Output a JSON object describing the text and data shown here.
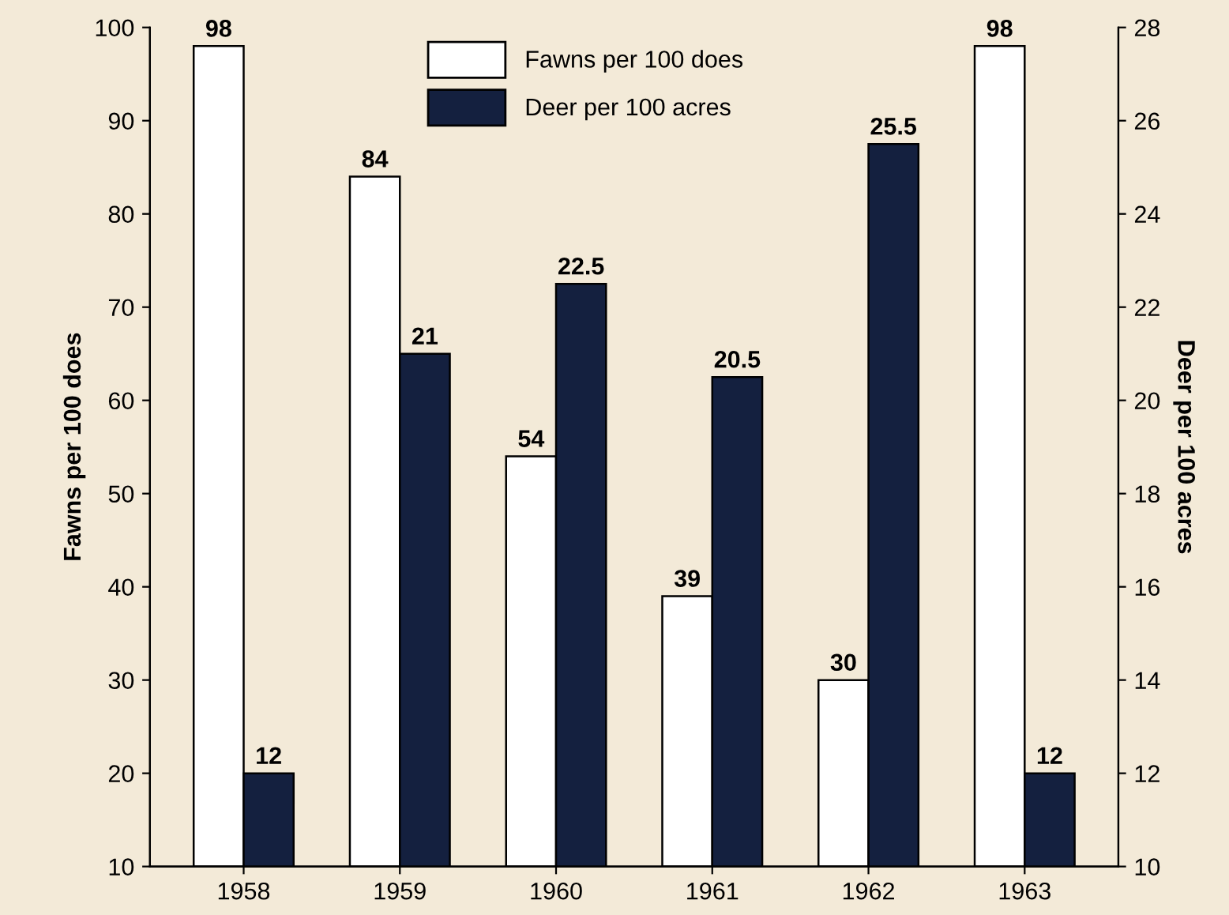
{
  "chart_data": {
    "type": "bar",
    "categories": [
      "1958",
      "1959",
      "1960",
      "1961",
      "1962",
      "1963"
    ],
    "series": [
      {
        "name": "Fawns per 100 does",
        "color": "#ffffff",
        "values": [
          98,
          84,
          54,
          39,
          30,
          98
        ]
      },
      {
        "name": "Deer per 100 acres",
        "color": "#14203f",
        "values": [
          12,
          21,
          22.5,
          20.5,
          25.5,
          12
        ],
        "axis": "y2"
      }
    ],
    "ylabel": "Fawns per 100 does",
    "y2label": "Deer per 100 acres",
    "ylim": [
      10,
      100
    ],
    "yticks": [
      10,
      20,
      30,
      40,
      50,
      60,
      70,
      80,
      90,
      100
    ],
    "y2lim": [
      10,
      28
    ],
    "y2ticks": [
      10,
      12,
      14,
      16,
      18,
      20,
      22,
      24,
      26,
      28
    ],
    "data_labels": true,
    "legend": "top",
    "grid": false
  }
}
